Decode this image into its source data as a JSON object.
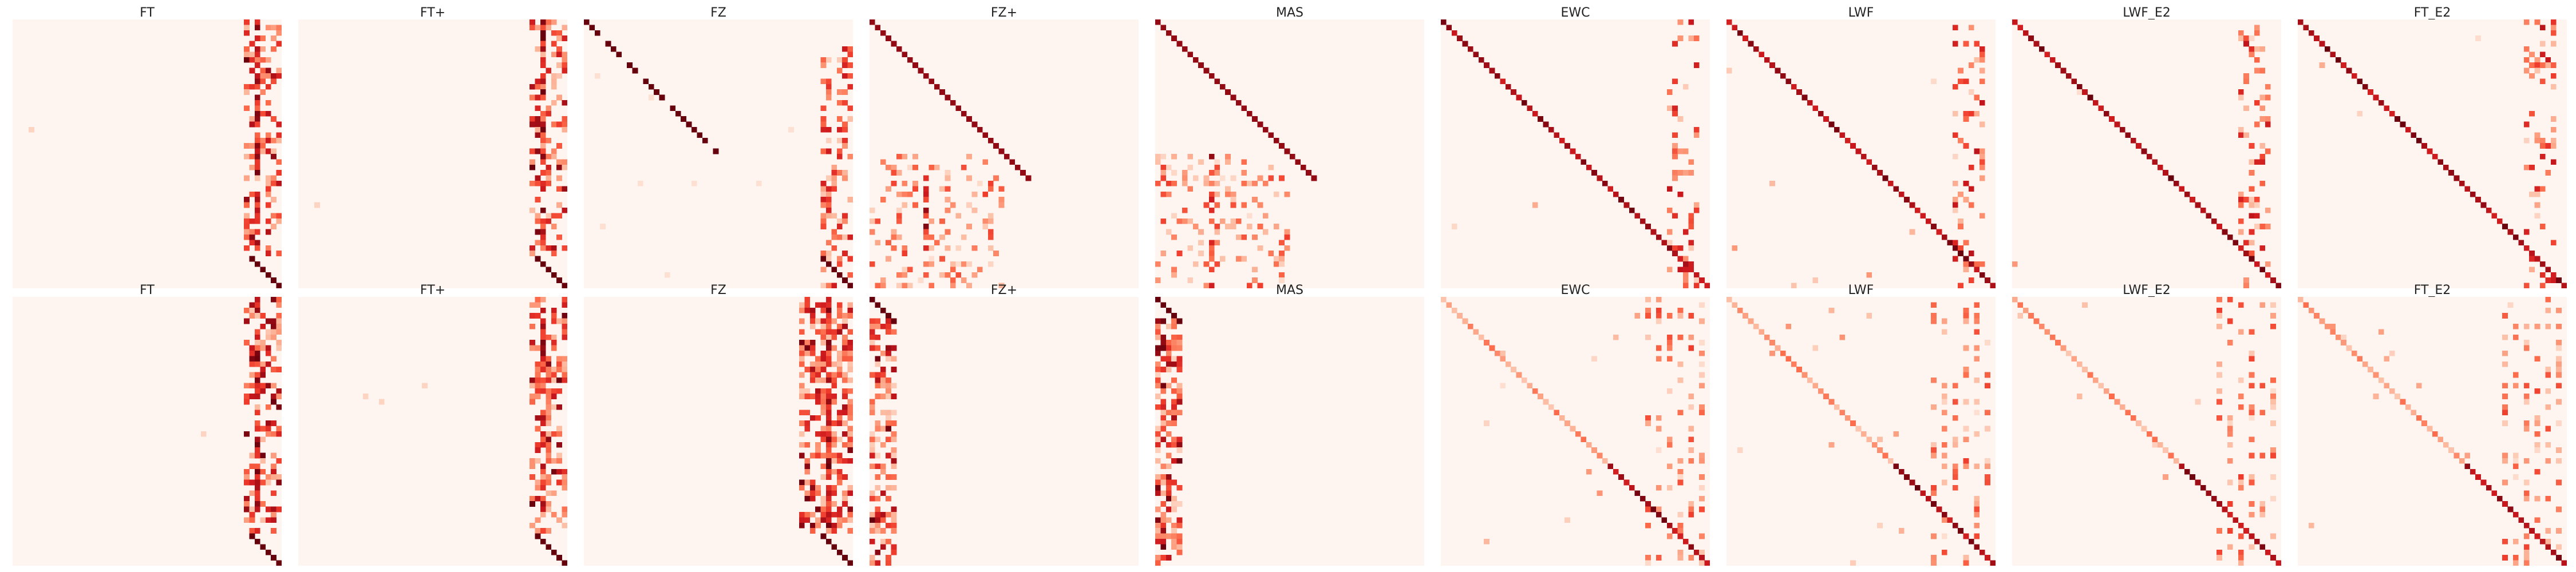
{
  "chart_data": {
    "type": "heatmap",
    "colormap": "Reds",
    "background_color": "#fff5f0",
    "grid": false,
    "rows": [
      {
        "panels": [
          {
            "title": "FT",
            "pattern": "right-columns"
          },
          {
            "title": "FT+",
            "pattern": "right-columns"
          },
          {
            "title": "FZ",
            "pattern": "diag-top-right"
          },
          {
            "title": "FZ+",
            "pattern": "diag-bottom-scatter"
          },
          {
            "title": "MAS",
            "pattern": "diag-bottom-scatter"
          },
          {
            "title": "EWC",
            "pattern": "full-diag"
          },
          {
            "title": "LWF",
            "pattern": "full-diag"
          },
          {
            "title": "LWF_E2",
            "pattern": "full-diag"
          },
          {
            "title": "FT_E2",
            "pattern": "full-diag"
          }
        ]
      },
      {
        "panels": [
          {
            "title": "FT",
            "pattern": "right-columns"
          },
          {
            "title": "FT+",
            "pattern": "right-columns"
          },
          {
            "title": "FZ",
            "pattern": "right-columns-dense"
          },
          {
            "title": "FZ+",
            "pattern": "left-columns"
          },
          {
            "title": "MAS",
            "pattern": "left-columns"
          },
          {
            "title": "EWC",
            "pattern": "faint-diag"
          },
          {
            "title": "LWF",
            "pattern": "faint-diag"
          },
          {
            "title": "LWF_E2",
            "pattern": "faint-diag"
          },
          {
            "title": "FT_E2",
            "pattern": "faint-diag"
          }
        ]
      }
    ]
  }
}
